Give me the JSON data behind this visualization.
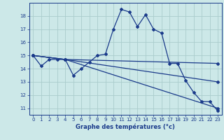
{
  "xlabel": "Graphe des températures (°c)",
  "bg_color": "#cce8e8",
  "grid_color": "#aacccc",
  "line_color": "#1a3a8a",
  "xlim": [
    -0.5,
    23.5
  ],
  "ylim": [
    10.5,
    19.0
  ],
  "yticks": [
    11,
    12,
    13,
    14,
    15,
    16,
    17,
    18
  ],
  "xticks": [
    0,
    1,
    2,
    3,
    4,
    5,
    6,
    7,
    8,
    9,
    10,
    11,
    12,
    13,
    14,
    15,
    16,
    17,
    18,
    19,
    20,
    21,
    22,
    23
  ],
  "series1": [
    [
      0,
      15.0
    ],
    [
      1,
      14.2
    ],
    [
      2,
      14.7
    ],
    [
      3,
      14.7
    ],
    [
      4,
      14.7
    ],
    [
      5,
      13.5
    ],
    [
      6,
      14.0
    ],
    [
      7,
      14.5
    ],
    [
      8,
      15.0
    ],
    [
      9,
      15.1
    ],
    [
      10,
      17.0
    ],
    [
      11,
      18.5
    ],
    [
      12,
      18.3
    ],
    [
      13,
      17.2
    ],
    [
      14,
      18.1
    ],
    [
      15,
      17.0
    ],
    [
      16,
      16.7
    ],
    [
      17,
      14.4
    ],
    [
      18,
      14.4
    ],
    [
      19,
      13.1
    ],
    [
      20,
      12.2
    ],
    [
      21,
      11.5
    ],
    [
      22,
      11.5
    ],
    [
      23,
      10.8
    ]
  ],
  "series2": [
    [
      0,
      15.0
    ],
    [
      4,
      14.7
    ],
    [
      23,
      14.4
    ]
  ],
  "series3": [
    [
      0,
      15.0
    ],
    [
      4,
      14.7
    ],
    [
      23,
      13.0
    ]
  ],
  "series4": [
    [
      0,
      15.0
    ],
    [
      4,
      14.7
    ],
    [
      23,
      11.0
    ]
  ]
}
